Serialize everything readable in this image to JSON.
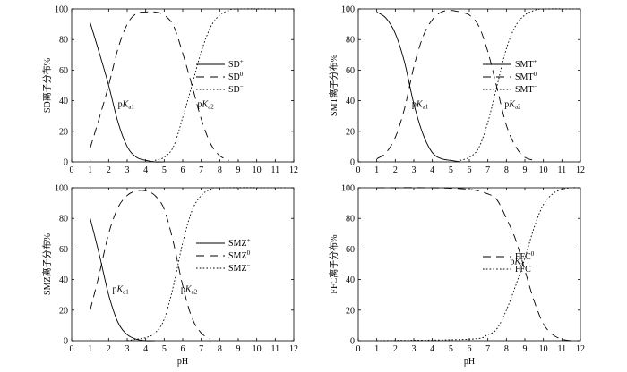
{
  "chart_data": [
    {
      "type": "line",
      "ylabel": "SD离子分布%",
      "xlabel": "",
      "xlim": [
        0,
        12
      ],
      "ylim": [
        0,
        100
      ],
      "xticks": [
        0,
        1,
        2,
        3,
        4,
        5,
        6,
        7,
        8,
        9,
        10,
        11,
        12
      ],
      "yticks": [
        0,
        20,
        40,
        60,
        80,
        100
      ],
      "legend_position": "right",
      "series": [
        {
          "name": "SD",
          "sup": "+",
          "dash": "solid",
          "x": [
            1.0,
            1.5,
            2.0,
            2.5,
            3.0,
            3.5,
            4.0,
            4.5,
            5.0
          ],
          "y": [
            91,
            71,
            50,
            26,
            10,
            3,
            1,
            0,
            0
          ]
        },
        {
          "name": "SD",
          "sup": "0",
          "dash": "long",
          "x": [
            1.0,
            1.5,
            2.0,
            2.5,
            3.0,
            3.5,
            4.0,
            4.5,
            5.0,
            5.5,
            6.0,
            6.5,
            7.0,
            7.5,
            8.0,
            8.5
          ],
          "y": [
            9,
            29,
            50,
            74,
            90,
            97,
            98,
            98,
            96,
            89,
            71,
            50,
            28,
            12,
            4,
            1
          ]
        },
        {
          "name": "SD",
          "sup": "−",
          "dash": "dot",
          "x": [
            4.5,
            5.0,
            5.5,
            6.0,
            6.5,
            7.0,
            7.5,
            8.0,
            8.5,
            9.0,
            12.0
          ],
          "y": [
            1,
            3,
            10,
            29,
            50,
            72,
            88,
            96,
            99,
            100,
            100
          ]
        }
      ],
      "annotations": [
        {
          "text": "pK",
          "sub": "a1",
          "x": 2.5,
          "y": 36
        },
        {
          "text": "pK",
          "sub": "a2",
          "x": 6.8,
          "y": 36
        }
      ]
    },
    {
      "type": "line",
      "ylabel": "SMT离子分布%",
      "xlabel": "",
      "xlim": [
        0,
        12
      ],
      "ylim": [
        0,
        100
      ],
      "xticks": [
        0,
        1,
        2,
        3,
        4,
        5,
        6,
        7,
        8,
        9,
        10,
        11,
        12
      ],
      "yticks": [
        0,
        20,
        40,
        60,
        80,
        100
      ],
      "legend_position": "right",
      "series": [
        {
          "name": "SMT",
          "sup": "+",
          "dash": "solid",
          "x": [
            1.0,
            1.5,
            2.0,
            2.5,
            3.0,
            3.5,
            4.0,
            4.5,
            5.0,
            5.5
          ],
          "y": [
            98,
            94,
            84,
            65,
            38,
            18,
            6,
            2,
            1,
            0
          ]
        },
        {
          "name": "SMT",
          "sup": "0",
          "dash": "long",
          "x": [
            1.0,
            1.5,
            2.0,
            2.5,
            3.0,
            3.5,
            4.0,
            4.5,
            5.0,
            5.5,
            6.0,
            6.5,
            7.0,
            7.5,
            8.0,
            8.5,
            9.0,
            9.5
          ],
          "y": [
            2,
            6,
            16,
            35,
            62,
            82,
            93,
            98,
            99,
            98,
            96,
            89,
            72,
            48,
            24,
            10,
            3,
            1
          ]
        },
        {
          "name": "SMT",
          "sup": "−",
          "dash": "dot",
          "x": [
            5.5,
            6.0,
            6.5,
            7.0,
            7.5,
            8.0,
            8.5,
            9.0,
            9.5,
            10.0,
            12.0
          ],
          "y": [
            1,
            3,
            9,
            26,
            50,
            74,
            89,
            96,
            99,
            100,
            100
          ]
        }
      ],
      "annotations": [
        {
          "text": "pK",
          "sub": "a1",
          "x": 2.9,
          "y": 36
        },
        {
          "text": "pK",
          "sub": "a2",
          "x": 7.9,
          "y": 36
        }
      ]
    },
    {
      "type": "line",
      "ylabel": "SMZ离子分布%",
      "xlabel": "pH",
      "xlim": [
        0,
        12
      ],
      "ylim": [
        0,
        100
      ],
      "xticks": [
        0,
        1,
        2,
        3,
        4,
        5,
        6,
        7,
        8,
        9,
        10,
        11,
        12
      ],
      "yticks": [
        0,
        20,
        40,
        60,
        80,
        100
      ],
      "legend_position": "right",
      "series": [
        {
          "name": "SMZ",
          "sup": "+",
          "dash": "solid",
          "x": [
            1.0,
            1.5,
            2.0,
            2.5,
            3.0,
            3.5,
            4.0,
            4.5
          ],
          "y": [
            80,
            56,
            30,
            12,
            4,
            1,
            0,
            0
          ]
        },
        {
          "name": "SMZ",
          "sup": "0",
          "dash": "long",
          "x": [
            1.0,
            1.5,
            2.0,
            2.5,
            3.0,
            3.5,
            4.0,
            4.5,
            5.0,
            5.5,
            6.0,
            6.5,
            7.0,
            7.5
          ],
          "y": [
            20,
            44,
            70,
            87,
            95,
            98,
            98,
            95,
            86,
            64,
            36,
            15,
            5,
            1
          ]
        },
        {
          "name": "SMZ",
          "sup": "−",
          "dash": "dot",
          "x": [
            3.0,
            3.5,
            4.0,
            4.5,
            5.0,
            5.5,
            6.0,
            6.5,
            7.0,
            7.5,
            8.0,
            12.0
          ],
          "y": [
            0,
            1,
            2,
            5,
            14,
            36,
            64,
            85,
            95,
            99,
            100,
            100
          ]
        }
      ],
      "annotations": [
        {
          "text": "pK",
          "sub": "a1",
          "x": 2.2,
          "y": 32
        },
        {
          "text": "pK",
          "sub": "a2",
          "x": 5.9,
          "y": 32
        }
      ]
    },
    {
      "type": "line",
      "ylabel": "FFC离子分布%",
      "xlabel": "pH",
      "xlim": [
        0,
        12
      ],
      "ylim": [
        0,
        100
      ],
      "xticks": [
        0,
        1,
        2,
        3,
        4,
        5,
        6,
        7,
        8,
        9,
        10,
        11,
        12
      ],
      "yticks": [
        0,
        20,
        40,
        60,
        80,
        100
      ],
      "legend_position": "right",
      "series": [
        {
          "name": "FFC",
          "sup": "0",
          "dash": "long",
          "x": [
            1.0,
            4.0,
            6.0,
            7.0,
            7.5,
            8.0,
            8.5,
            9.0,
            9.5,
            10.0,
            10.5,
            11.0,
            11.5,
            12.0
          ],
          "y": [
            100,
            100,
            99,
            96,
            92,
            80,
            66,
            46,
            26,
            11,
            4,
            1,
            0,
            0
          ]
        },
        {
          "name": "FFC",
          "sup": "−",
          "dash": "dot",
          "x": [
            1.0,
            6.0,
            7.0,
            7.5,
            8.0,
            8.5,
            9.0,
            9.5,
            10.0,
            10.5,
            11.0,
            11.5,
            12.0
          ],
          "y": [
            0,
            1,
            4,
            8,
            20,
            36,
            54,
            74,
            89,
            96,
            99,
            100,
            100
          ]
        }
      ],
      "annotations": [
        {
          "text": "pK",
          "sub": "a",
          "x": 8.2,
          "y": 50
        }
      ]
    }
  ]
}
